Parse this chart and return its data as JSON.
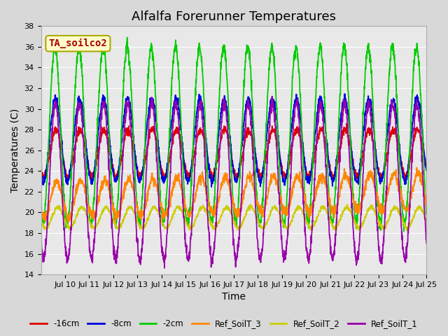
{
  "title": "Alfalfa Forerunner Temperatures",
  "xlabel": "Time",
  "ylabel": "Temperatures (C)",
  "xlim": [
    0,
    16
  ],
  "ylim": [
    14,
    38
  ],
  "yticks": [
    14,
    16,
    18,
    20,
    22,
    24,
    26,
    28,
    30,
    32,
    34,
    36,
    38
  ],
  "xtick_labels": [
    "Jul 10",
    "Jul 11",
    "Jul 12",
    "Jul 13",
    "Jul 14",
    "Jul 15",
    "Jul 16",
    "Jul 17",
    "Jul 18",
    "Jul 19",
    "Jul 20",
    "Jul 21",
    "Jul 22",
    "Jul 23",
    "Jul 24",
    "Jul 25"
  ],
  "legend_labels": [
    "-16cm",
    "-8cm",
    "-2cm",
    "Ref_SoilT_3",
    "Ref_SoilT_2",
    "Ref_SoilT_1"
  ],
  "legend_colors": [
    "#dd0000",
    "#0000dd",
    "#00cc00",
    "#ff8800",
    "#cccc00",
    "#9900aa"
  ],
  "annotation_text": "TA_soilco2",
  "annotation_color": "#aa0000",
  "annotation_bg": "#ffffcc",
  "annotation_border": "#aaaa00",
  "plot_bg": "#e8e8e8",
  "grid_color": "#ffffff",
  "title_fontsize": 13,
  "axis_label_fontsize": 10,
  "tick_fontsize": 8
}
